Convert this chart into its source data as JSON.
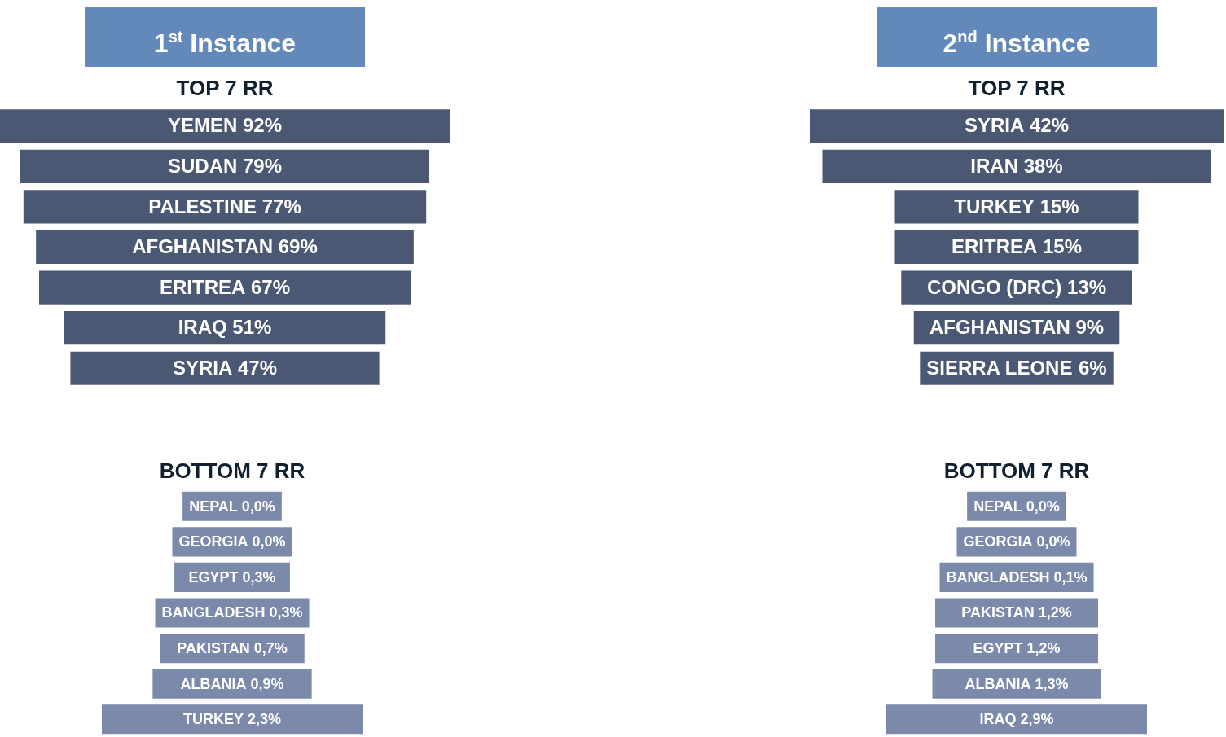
{
  "chart_data": [
    {
      "type": "other",
      "title": "1$^{st}$ Instance",
      "subtitle": "TOP 7 RR",
      "categories": [
        "YEMEN",
        "SUDAN",
        "PALESTINE",
        "AFGHANISTAN",
        "ERITREA",
        "IRAQ",
        "SYRIA"
      ],
      "values": [
        92,
        79,
        77,
        69,
        67,
        51,
        47
      ],
      "value_labels": [
        "92%",
        "79%",
        "77%",
        "69%",
        "67%",
        "51%",
        "47%"
      ],
      "color": "#4a5873"
    },
    {
      "type": "other",
      "title": "2$^{nd}$ Instance",
      "subtitle": "TOP 7 RR",
      "categories": [
        "SYRIA",
        "IRAN",
        "TURKEY",
        "ERITREA",
        "CONGO (DRC)",
        "AFGHANISTAN",
        "SIERRA LEONE"
      ],
      "values": [
        42,
        38,
        15,
        15,
        13,
        9,
        6
      ],
      "value_labels": [
        "42%",
        "38%",
        "15%",
        "15%",
        "13%",
        "9%",
        "6%"
      ],
      "color": "#4a5873"
    },
    {
      "type": "other",
      "title": "BOTTOM 7 RR",
      "categories": [
        "NEPAL",
        "GEORGIA",
        "EGYPT",
        "BANGLADESH",
        "PAKISTAN",
        "ALBANIA",
        "TURKEY"
      ],
      "values": [
        0.0,
        0.0,
        0.3,
        0.3,
        0.7,
        0.9,
        2.3
      ],
      "value_labels": [
        "0,0%",
        "0,0%",
        "0,3%",
        "0,3%",
        "0,7%",
        "0,9%",
        "2,3%"
      ],
      "color": "#7b8aaa"
    },
    {
      "type": "other",
      "title": "BOTTOM 7 RR",
      "categories": [
        "NEPAL",
        "GEORGIA",
        "BANGLADESH",
        "PAKISTAN",
        "EGYPT",
        "ALBANIA",
        "IRAQ"
      ],
      "values": [
        0.0,
        0.0,
        0.1,
        1.2,
        1.2,
        1.3,
        2.9
      ],
      "value_labels": [
        "0,0%",
        "0,0%",
        "0,1%",
        "1,2%",
        "1,2%",
        "1,3%",
        "2,9%"
      ],
      "color": "#7b8aaa"
    }
  ]
}
